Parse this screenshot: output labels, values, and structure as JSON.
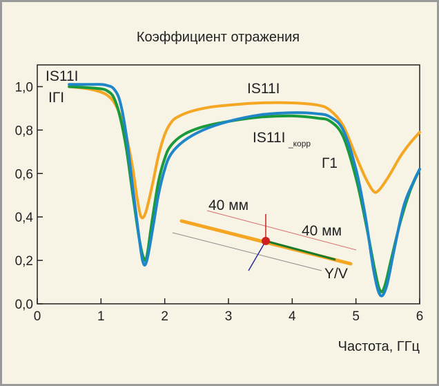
{
  "chart_data": {
    "type": "line",
    "title": "Коэффициент отражения",
    "xlabel": "Частота, ГГц",
    "ylabel": "",
    "xlim": [
      0,
      6
    ],
    "ylim": [
      0,
      1.1
    ],
    "x_ticks": [
      "0",
      "1",
      "2",
      "3",
      "4",
      "5",
      "6"
    ],
    "y_ticks": [
      "0,0",
      "0,2",
      "0,4",
      "0,6",
      "0,8",
      "1,0"
    ],
    "grid": false,
    "colors": {
      "s11": "#f5a623",
      "gamma": "#1a9a3a",
      "s11_corr": "#1f86c8",
      "inset_red": "#d01f1f",
      "inset_purple": "#2b2b9c"
    },
    "series": [
      {
        "name": "IS11I",
        "color": "#f5a623",
        "points": [
          [
            0.5,
            1.0
          ],
          [
            0.8,
            0.99
          ],
          [
            1.0,
            0.975
          ],
          [
            1.1,
            0.96
          ],
          [
            1.2,
            0.93
          ],
          [
            1.3,
            0.87
          ],
          [
            1.4,
            0.77
          ],
          [
            1.5,
            0.62
          ],
          [
            1.57,
            0.48
          ],
          [
            1.63,
            0.4
          ],
          [
            1.7,
            0.42
          ],
          [
            1.8,
            0.54
          ],
          [
            1.9,
            0.68
          ],
          [
            2.0,
            0.78
          ],
          [
            2.1,
            0.835
          ],
          [
            2.2,
            0.86
          ],
          [
            2.4,
            0.885
          ],
          [
            2.7,
            0.905
          ],
          [
            3.0,
            0.915
          ],
          [
            3.5,
            0.925
          ],
          [
            4.0,
            0.925
          ],
          [
            4.4,
            0.915
          ],
          [
            4.6,
            0.89
          ],
          [
            4.8,
            0.82
          ],
          [
            5.0,
            0.68
          ],
          [
            5.15,
            0.58
          ],
          [
            5.27,
            0.52
          ],
          [
            5.35,
            0.52
          ],
          [
            5.5,
            0.58
          ],
          [
            5.7,
            0.68
          ],
          [
            5.85,
            0.74
          ],
          [
            6.0,
            0.79
          ]
        ]
      },
      {
        "name": "IГI",
        "color": "#1a9a3a",
        "points": [
          [
            0.5,
            1.0
          ],
          [
            0.8,
            0.995
          ],
          [
            1.0,
            0.99
          ],
          [
            1.1,
            0.98
          ],
          [
            1.2,
            0.95
          ],
          [
            1.3,
            0.86
          ],
          [
            1.4,
            0.71
          ],
          [
            1.5,
            0.5
          ],
          [
            1.6,
            0.3
          ],
          [
            1.67,
            0.21
          ],
          [
            1.72,
            0.22
          ],
          [
            1.8,
            0.38
          ],
          [
            1.9,
            0.56
          ],
          [
            2.0,
            0.67
          ],
          [
            2.1,
            0.73
          ],
          [
            2.3,
            0.78
          ],
          [
            2.6,
            0.815
          ],
          [
            3.0,
            0.84
          ],
          [
            3.5,
            0.86
          ],
          [
            4.0,
            0.865
          ],
          [
            4.4,
            0.855
          ],
          [
            4.6,
            0.84
          ],
          [
            4.8,
            0.77
          ],
          [
            5.0,
            0.58
          ],
          [
            5.15,
            0.38
          ],
          [
            5.3,
            0.15
          ],
          [
            5.38,
            0.06
          ],
          [
            5.45,
            0.08
          ],
          [
            5.55,
            0.2
          ],
          [
            5.7,
            0.38
          ],
          [
            5.85,
            0.52
          ],
          [
            6.0,
            0.62
          ]
        ]
      },
      {
        "name": "IS11I_корр",
        "color": "#1f86c8",
        "points": [
          [
            0.5,
            1.01
          ],
          [
            0.8,
            1.01
          ],
          [
            1.0,
            1.01
          ],
          [
            1.1,
            1.005
          ],
          [
            1.2,
            0.99
          ],
          [
            1.3,
            0.93
          ],
          [
            1.4,
            0.77
          ],
          [
            1.5,
            0.53
          ],
          [
            1.6,
            0.3
          ],
          [
            1.66,
            0.19
          ],
          [
            1.72,
            0.2
          ],
          [
            1.82,
            0.36
          ],
          [
            1.9,
            0.5
          ],
          [
            2.0,
            0.62
          ],
          [
            2.1,
            0.69
          ],
          [
            2.3,
            0.75
          ],
          [
            2.6,
            0.8
          ],
          [
            3.0,
            0.84
          ],
          [
            3.5,
            0.87
          ],
          [
            4.0,
            0.88
          ],
          [
            4.4,
            0.875
          ],
          [
            4.6,
            0.86
          ],
          [
            4.8,
            0.8
          ],
          [
            5.0,
            0.62
          ],
          [
            5.15,
            0.4
          ],
          [
            5.28,
            0.15
          ],
          [
            5.38,
            0.04
          ],
          [
            5.48,
            0.08
          ],
          [
            5.6,
            0.25
          ],
          [
            5.75,
            0.45
          ],
          [
            5.9,
            0.56
          ],
          [
            6.0,
            0.62
          ]
        ]
      }
    ],
    "annotations": {
      "s11_top": "IS11I",
      "gamma_top": "IГI",
      "s11_mid": "IS11I",
      "s11_corr_main": "IS11I",
      "s11_corr_sub": "_корр",
      "g1": "Г1",
      "dim_upper": "40 мм",
      "dim_lower": "40 мм",
      "yv": "Y/V"
    }
  }
}
